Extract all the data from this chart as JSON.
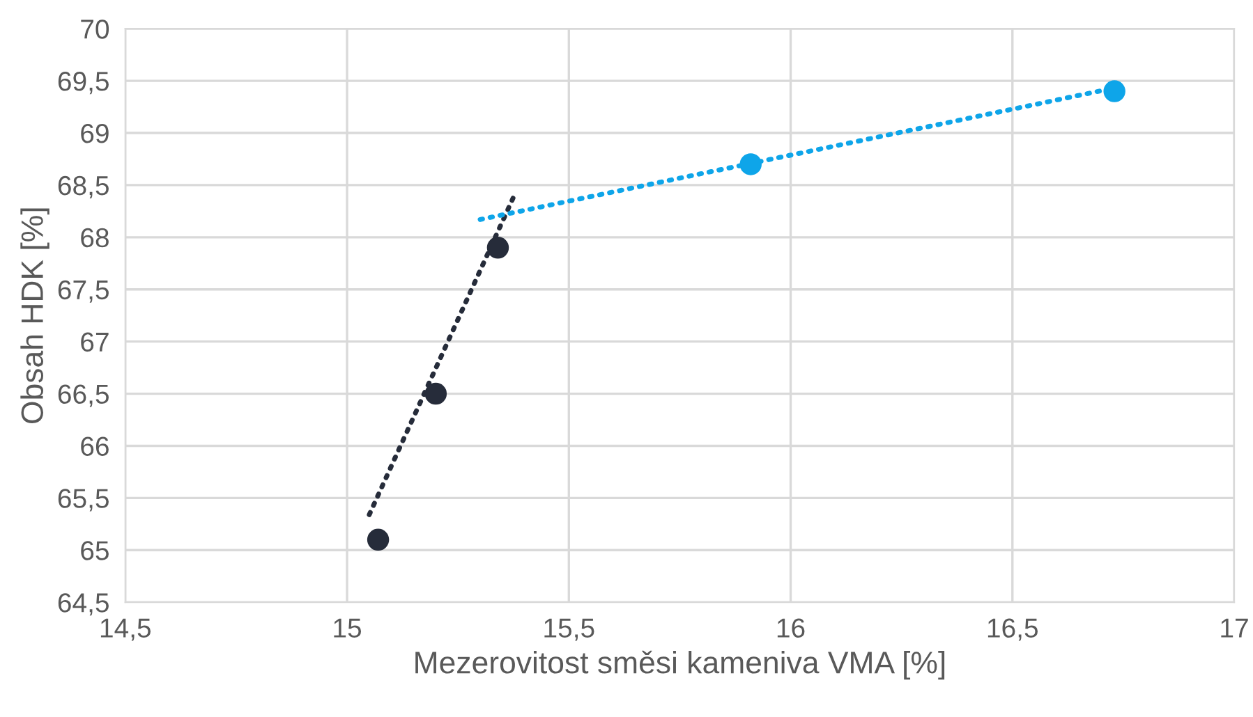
{
  "chart_data": {
    "type": "scatter",
    "xlabel": "Mezerovitost směsi kameniva VMA [%]",
    "ylabel": "Obsah HDK [%]",
    "series": [
      {
        "type": "line",
        "color": "#262c3a",
        "line_style": "dotted",
        "marker": "none",
        "x": [
          15.05,
          15.38
        ],
        "values": [
          65.34,
          68.43
        ]
      },
      {
        "type": "line",
        "color": "#0ea5e9",
        "line_style": "dotted",
        "marker": "none",
        "x": [
          15.3,
          16.74
        ],
        "values": [
          68.17,
          69.44
        ]
      },
      {
        "color": "#262c3a",
        "marker": "circle",
        "x": [
          15.07,
          15.2,
          15.34
        ],
        "values": [
          65.1,
          66.5,
          67.9
        ]
      },
      {
        "color": "#0ea5e9",
        "marker": "circle",
        "x": [
          15.91,
          16.73
        ],
        "values": [
          68.7,
          69.4
        ]
      }
    ],
    "xlim": [
      14.5,
      17
    ],
    "xticks": [
      {
        "value": 14.5,
        "label": "14,5"
      },
      15,
      {
        "value": 15.5,
        "label": "15,5"
      },
      16,
      {
        "value": 16.5,
        "label": "16,5"
      },
      17
    ],
    "ylim": [
      64.5,
      70
    ],
    "yticks": [
      {
        "value": 64.5,
        "label": "64,5"
      },
      65,
      {
        "value": 65.5,
        "label": "65,5"
      },
      66,
      {
        "value": 66.5,
        "label": "66,5"
      },
      67,
      {
        "value": 67.5,
        "label": "67,5"
      },
      68,
      {
        "value": 68.5,
        "label": "68,5"
      },
      69,
      {
        "value": 69.5,
        "label": "69,5"
      },
      70
    ],
    "grid": true
  }
}
